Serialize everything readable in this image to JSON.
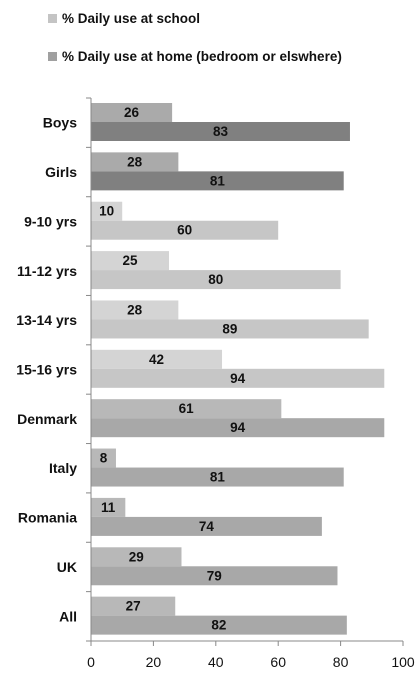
{
  "chart_data": {
    "type": "bar",
    "orientation": "horizontal",
    "categories": [
      "Boys",
      "Girls",
      "9-10 yrs",
      "11-12 yrs",
      "13-14 yrs",
      "15-16 yrs",
      "Denmark",
      "Italy",
      "Romania",
      "UK",
      "All"
    ],
    "series": [
      {
        "name": "% Daily use at school",
        "values": [
          26,
          28,
          10,
          25,
          28,
          42,
          61,
          8,
          11,
          29,
          27
        ],
        "color": "#c4c4c4"
      },
      {
        "name": "% Daily use at home (bedroom or elswhere)",
        "values": [
          83,
          81,
          60,
          80,
          89,
          94,
          94,
          81,
          74,
          79,
          82
        ],
        "color": "#a0a0a0"
      }
    ],
    "group_colors": {
      "school": [
        "#aaaaaa",
        "#aaaaaa",
        "#d4d4d4",
        "#d4d4d4",
        "#d4d4d4",
        "#d4d4d4",
        "#b8b8b8",
        "#b8b8b8",
        "#b8b8b8",
        "#b8b8b8",
        "#b8b8b8"
      ],
      "home": [
        "#808080",
        "#808080",
        "#c6c6c6",
        "#c6c6c6",
        "#c6c6c6",
        "#c6c6c6",
        "#a8a8a8",
        "#a8a8a8",
        "#a8a8a8",
        "#a8a8a8",
        "#a8a8a8"
      ]
    },
    "legend_colors": [
      "#c4c4c4",
      "#a0a0a0"
    ],
    "xlim": [
      0,
      100
    ],
    "xticks": [
      0,
      20,
      40,
      60,
      80,
      100
    ],
    "xlabel": "",
    "ylabel": "",
    "title": "",
    "grid": false,
    "legend_position": "top"
  }
}
